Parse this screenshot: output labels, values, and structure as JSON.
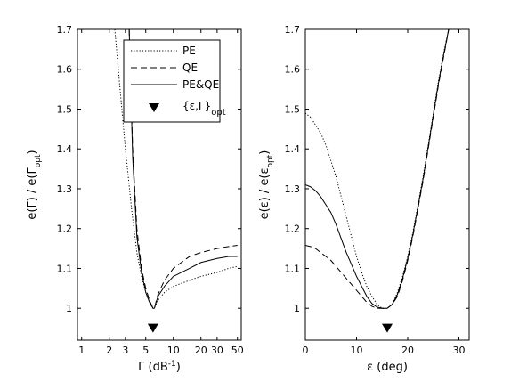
{
  "chart_data": [
    {
      "type": "line",
      "xscale": "log",
      "xlabel": "Γ (dB⁻¹)",
      "xlabel_base": "Γ (dB",
      "xlabel_sup": "-1",
      "xlabel_end": ")",
      "ylabel": "e(Γ) / e(Γopt)",
      "ylabel_base": "e(Γ) / e(Γ",
      "ylabel_sub": "opt",
      "ylabel_end": ")",
      "xlim": [
        0.9,
        55
      ],
      "ylim": [
        0.92,
        1.7
      ],
      "xticks": [
        1,
        2,
        3,
        5,
        10,
        20,
        30,
        50
      ],
      "xtick_labels": [
        "1",
        "2",
        "3",
        "5",
        "10",
        "20",
        "30",
        "50"
      ],
      "yticks": [
        1,
        1.1,
        1.2,
        1.3,
        1.4,
        1.5,
        1.6,
        1.7
      ],
      "ytick_labels": [
        "1",
        "1.1",
        "1.2",
        "1.3",
        "1.4",
        "1.5",
        "1.6",
        "1.7"
      ],
      "legend_position": "top-right",
      "series": [
        {
          "name": "PE",
          "style": "dotted",
          "x": [
            2.3,
            2.6,
            3.0,
            3.5,
            4.0,
            4.5,
            5.0,
            5.5,
            6.0,
            6.2,
            6.8,
            8,
            10,
            15,
            20,
            30,
            40,
            50
          ],
          "y": [
            1.7,
            1.56,
            1.4,
            1.25,
            1.14,
            1.08,
            1.04,
            1.015,
            1.0,
            1.0,
            1.02,
            1.04,
            1.055,
            1.07,
            1.08,
            1.09,
            1.1,
            1.105
          ]
        },
        {
          "name": "QE",
          "style": "dashed",
          "x": [
            3.3,
            3.6,
            4.0,
            4.5,
            5.0,
            5.5,
            6.0,
            6.2,
            6.8,
            8,
            10,
            15,
            20,
            30,
            40,
            50
          ],
          "y": [
            1.7,
            1.4,
            1.2,
            1.1,
            1.05,
            1.02,
            1.0,
            1.0,
            1.035,
            1.07,
            1.1,
            1.13,
            1.14,
            1.15,
            1.155,
            1.158
          ]
        },
        {
          "name": "PE&QE",
          "style": "solid",
          "x": [
            3.3,
            3.6,
            4.0,
            4.5,
            5.0,
            5.5,
            6.0,
            6.2,
            6.8,
            8,
            10,
            15,
            20,
            30,
            40,
            50
          ],
          "y": [
            1.7,
            1.38,
            1.18,
            1.09,
            1.04,
            1.015,
            1.0,
            1.0,
            1.03,
            1.055,
            1.08,
            1.1,
            1.115,
            1.125,
            1.13,
            1.13
          ]
        }
      ],
      "marker": {
        "name": "{ε,Γ}opt",
        "label_base": "{ε,Γ}",
        "label_sub": "opt",
        "x": 6.0,
        "y": 0.95,
        "symbol": "down-triangle"
      }
    },
    {
      "type": "line",
      "xscale": "linear",
      "xlabel": "ε (deg)",
      "ylabel": "e(ε) / e(εopt)",
      "ylabel_base": "e(ε) / e(ε",
      "ylabel_sub": "opt",
      "ylabel_end": ")",
      "xlim": [
        0,
        32
      ],
      "ylim": [
        0.92,
        1.7
      ],
      "xticks": [
        0,
        10,
        20,
        30
      ],
      "xtick_labels": [
        "0",
        "10",
        "20",
        "30"
      ],
      "yticks": [
        1,
        1.1,
        1.2,
        1.3,
        1.4,
        1.5,
        1.6,
        1.7
      ],
      "ytick_labels": [
        "1",
        "1.1",
        "1.2",
        "1.3",
        "1.4",
        "1.5",
        "1.6",
        "1.7"
      ],
      "series": [
        {
          "name": "PE",
          "style": "dotted",
          "x": [
            0,
            1,
            2,
            3,
            4,
            5,
            6,
            7,
            8,
            9,
            10,
            11,
            12,
            13,
            14,
            15,
            16,
            17,
            18,
            19,
            20,
            21,
            22,
            23,
            24,
            25,
            26,
            27,
            28
          ],
          "y": [
            1.49,
            1.48,
            1.46,
            1.44,
            1.41,
            1.37,
            1.33,
            1.28,
            1.23,
            1.18,
            1.13,
            1.09,
            1.055,
            1.03,
            1.01,
            1.0,
            1.0,
            1.01,
            1.04,
            1.08,
            1.13,
            1.19,
            1.26,
            1.33,
            1.41,
            1.49,
            1.57,
            1.64,
            1.7
          ]
        },
        {
          "name": "QE",
          "style": "dashed",
          "x": [
            0,
            1,
            2,
            3,
            4,
            5,
            6,
            7,
            8,
            9,
            10,
            11,
            12,
            13,
            14,
            15,
            16,
            17,
            18,
            19,
            20,
            21,
            22,
            23,
            24,
            25,
            26,
            27,
            28
          ],
          "y": [
            1.158,
            1.155,
            1.15,
            1.14,
            1.13,
            1.12,
            1.105,
            1.09,
            1.075,
            1.06,
            1.045,
            1.03,
            1.015,
            1.005,
            1.0,
            1.0,
            1.0,
            1.01,
            1.03,
            1.07,
            1.12,
            1.18,
            1.25,
            1.32,
            1.4,
            1.48,
            1.56,
            1.63,
            1.7
          ]
        },
        {
          "name": "PE&QE",
          "style": "solid",
          "x": [
            0,
            1,
            2,
            3,
            4,
            5,
            6,
            7,
            8,
            9,
            10,
            11,
            12,
            13,
            14,
            15,
            16,
            17,
            18,
            19,
            20,
            21,
            22,
            23,
            24,
            25,
            26,
            27,
            28
          ],
          "y": [
            1.31,
            1.305,
            1.295,
            1.28,
            1.26,
            1.24,
            1.21,
            1.175,
            1.14,
            1.11,
            1.08,
            1.055,
            1.03,
            1.012,
            1.003,
            1.0,
            1.0,
            1.01,
            1.035,
            1.075,
            1.125,
            1.185,
            1.255,
            1.325,
            1.405,
            1.485,
            1.565,
            1.635,
            1.7
          ]
        }
      ],
      "marker": {
        "name": "{ε,Γ}opt",
        "x": 16,
        "y": 0.95,
        "symbol": "down-triangle"
      }
    }
  ]
}
